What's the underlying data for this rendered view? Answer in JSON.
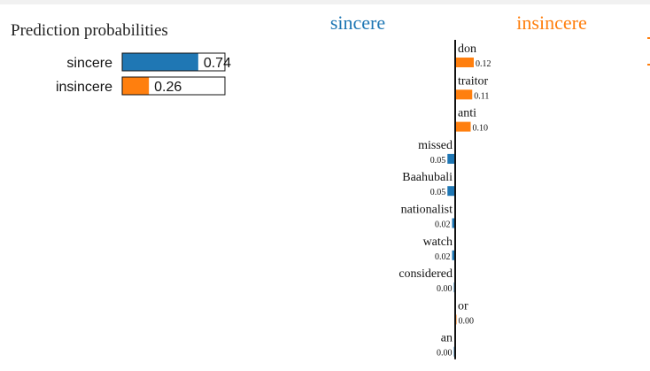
{
  "chart_data": [
    {
      "type": "bar",
      "title": "Prediction probabilities",
      "categories": [
        "sincere",
        "insincere"
      ],
      "values": [
        0.74,
        0.26
      ],
      "value_labels": [
        "0.74",
        "0.26"
      ],
      "colors": [
        "#1f77b4",
        "#ff7f0e"
      ],
      "xlim": [
        0,
        1
      ]
    },
    {
      "type": "bar",
      "orientation": "horizontal-diverging",
      "class_labels": {
        "left": "sincere",
        "right": "insincere"
      },
      "class_colors": {
        "left": "#1f77b4",
        "right": "#ff7f0e"
      },
      "features": [
        {
          "name": "don",
          "weight": 0.12,
          "label": "0.12"
        },
        {
          "name": "traitor",
          "weight": 0.11,
          "label": "0.11"
        },
        {
          "name": "anti",
          "weight": 0.1,
          "label": "0.10"
        },
        {
          "name": "missed",
          "weight": -0.05,
          "label": "0.05"
        },
        {
          "name": "Baahubali",
          "weight": -0.05,
          "label": "0.05"
        },
        {
          "name": "nationalist",
          "weight": -0.02,
          "label": "0.02"
        },
        {
          "name": "watch",
          "weight": -0.02,
          "label": "0.02"
        },
        {
          "name": "considered",
          "weight": -0.001,
          "label": "0.00"
        },
        {
          "name": "or",
          "weight": 0.001,
          "label": "0.00"
        },
        {
          "name": "an",
          "weight": -0.001,
          "label": "0.00"
        }
      ]
    }
  ]
}
